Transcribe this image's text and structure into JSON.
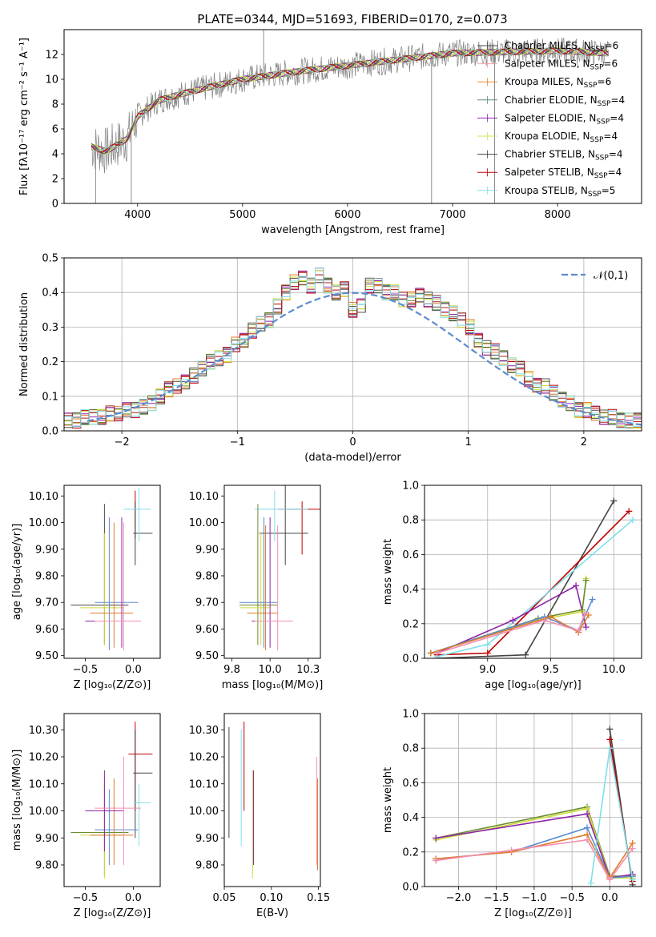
{
  "figure": {
    "title": "PLATE=0344, MJD=51693, FIBERID=0170, z=0.073"
  },
  "model_colors": [
    "#4d4d4d",
    "#c00000",
    "#e07b2c",
    "#6b8e2f",
    "#8e24aa",
    "#cddc39",
    "#555555",
    "#b22222",
    "#80deea"
  ],
  "chart_data": [
    {
      "id": "spectrum",
      "type": "line",
      "xlabel": "wavelength [Angstrom, rest frame]",
      "ylabel": "Flux [fλ10⁻¹⁷ erg cm⁻² s⁻¹ A⁻¹]",
      "xlim": [
        3300,
        8800
      ],
      "ylim": [
        0,
        14
      ],
      "xticks": [
        4000,
        5000,
        6000,
        7000,
        8000
      ],
      "yticks": [
        0,
        2,
        4,
        6,
        8,
        10,
        12
      ],
      "data_color": "#808080",
      "legend_placement": "upper right",
      "legend": [
        "Chabrier MILES, N_SSP=6",
        "Salpeter MILES, N_SSP=6",
        "Kroupa MILES, N_SSP=6",
        "Chabrier ELODIE, N_SSP=4",
        "Salpeter ELODIE, N_SSP=4",
        "Kroupa ELODIE, N_SSP=4",
        "Chabrier STELIB, N_SSP=4",
        "Salpeter STELIB, N_SSP=4",
        "Kroupa STELIB, N_SSP=5"
      ],
      "legend_colors": [
        "#4d4d4d",
        "#f4a0a0",
        "#e08a2c",
        "#5f8a7a",
        "#8e24aa",
        "#d4e157",
        "#444444",
        "#c00000",
        "#80deea"
      ],
      "continuum": {
        "x": [
          3550,
          3700,
          3900,
          4000,
          4200,
          4500,
          5000,
          5500,
          6000,
          6500,
          7000,
          7500,
          8000,
          8500
        ],
        "y": [
          4.6,
          4.2,
          5.2,
          7.0,
          8.3,
          9.0,
          10.0,
          10.6,
          11.1,
          11.6,
          12.1,
          12.2,
          12.3,
          12.1
        ]
      },
      "spikes": [
        {
          "x": 5200,
          "y": 14
        },
        {
          "x": 6800,
          "y": 0
        },
        {
          "x": 7400,
          "y": 0
        },
        {
          "x": 3940,
          "y": 0
        },
        {
          "x": 3600,
          "y": 0
        }
      ]
    },
    {
      "id": "residual_hist",
      "type": "step",
      "xlabel": "(data-model)/error",
      "ylabel": "Normed distribution",
      "xlim": [
        -2.5,
        2.5
      ],
      "ylim": [
        0,
        0.5
      ],
      "xticks": [
        -2,
        -1,
        0,
        1,
        2
      ],
      "yticks": [
        0.0,
        0.1,
        0.2,
        0.3,
        0.4,
        0.5
      ],
      "grid": true,
      "legend_placement": "upper right",
      "gaussian": {
        "name": "𝒩(0,1)",
        "color": "#5b8bd0"
      },
      "bin_edges_start": -2.5,
      "bin_width": 0.1,
      "envelope": [
        0.03,
        0.03,
        0.04,
        0.04,
        0.04,
        0.05,
        0.05,
        0.06,
        0.06,
        0.07,
        0.08,
        0.1,
        0.12,
        0.13,
        0.14,
        0.16,
        0.18,
        0.2,
        0.21,
        0.22,
        0.25,
        0.26,
        0.29,
        0.31,
        0.32,
        0.36,
        0.4,
        0.43,
        0.44,
        0.42,
        0.45,
        0.42,
        0.4,
        0.41,
        0.35,
        0.36,
        0.42,
        0.42,
        0.4,
        0.4,
        0.38,
        0.38,
        0.39,
        0.38,
        0.37,
        0.35,
        0.34,
        0.32,
        0.3,
        0.26,
        0.24,
        0.23,
        0.21,
        0.19,
        0.18,
        0.15,
        0.13,
        0.13,
        0.11,
        0.09,
        0.08,
        0.06,
        0.06,
        0.05,
        0.04,
        0.04,
        0.03,
        0.03,
        0.03
      ]
    },
    {
      "id": "age_vs_Z",
      "type": "errorbar",
      "xlabel": "Z [log₁₀(Z/Z⊙)]",
      "ylabel": "age  [log₁₀(age/yr)]",
      "xlim": [
        -0.72,
        0.28
      ],
      "ylim": [
        9.49,
        10.14
      ],
      "xticks": [
        -0.5,
        0.0
      ],
      "xticklabels": [
        "−0.5",
        "0.0"
      ],
      "yticks": [
        9.5,
        9.6,
        9.7,
        9.8,
        9.9,
        10.0,
        10.1
      ],
      "points": [
        {
          "x": 0.02,
          "y": 10.05,
          "xe": [
            0.0,
            0.02
          ],
          "ye": [
            9.94,
            10.12
          ],
          "c": "#c00000"
        },
        {
          "x": 0.02,
          "y": 9.96,
          "xe": [
            0.0,
            0.2
          ],
          "ye": [
            9.84,
            10.08
          ],
          "c": "#444444"
        },
        {
          "x": 0.06,
          "y": 10.05,
          "xe": [
            -0.1,
            0.18
          ],
          "ye": [
            9.93,
            10.13
          ],
          "c": "#80deea"
        },
        {
          "x": -0.3,
          "y": 9.69,
          "xe": [
            -0.65,
            -0.05
          ],
          "ye": [
            9.54,
            10.07
          ],
          "c": "#4d4d4d"
        },
        {
          "x": -0.3,
          "y": 9.68,
          "xe": [
            -0.55,
            -0.1
          ],
          "ye": [
            9.54,
            9.96
          ],
          "c": "#cddc39"
        },
        {
          "x": -0.25,
          "y": 9.7,
          "xe": [
            -0.4,
            0.05
          ],
          "ye": [
            9.52,
            10.02
          ],
          "c": "#5b8bd0"
        },
        {
          "x": -0.2,
          "y": 9.66,
          "xe": [
            -0.45,
            0.0
          ],
          "ye": [
            9.53,
            10.0
          ],
          "c": "#e07b2c"
        },
        {
          "x": -0.12,
          "y": 9.63,
          "xe": [
            -0.5,
            0.05
          ],
          "ye": [
            9.53,
            10.02
          ],
          "c": "#8e24aa"
        },
        {
          "x": -0.1,
          "y": 9.63,
          "xe": [
            -0.4,
            0.08
          ],
          "ye": [
            9.52,
            10.0
          ],
          "c": "#f48fb1"
        }
      ]
    },
    {
      "id": "age_vs_mass",
      "type": "errorbar",
      "xlabel": "mass [log₁₀(M/M⊙)]",
      "ylabel": "",
      "xlim": [
        9.7,
        10.33
      ],
      "ylim": [
        9.49,
        10.14
      ],
      "xticks": [
        9.75,
        10.0,
        10.25
      ],
      "yticks": [
        9.5,
        9.6,
        9.7,
        9.8,
        9.9,
        10.0,
        10.1
      ],
      "points": [
        {
          "x": 10.21,
          "y": 10.05,
          "xe": [
            10.05,
            10.33
          ],
          "ye": [
            9.88,
            10.08
          ],
          "c": "#c00000"
        },
        {
          "x": 10.1,
          "y": 9.96,
          "xe": [
            9.93,
            10.25
          ],
          "ye": [
            9.84,
            10.14
          ],
          "c": "#444444"
        },
        {
          "x": 10.03,
          "y": 10.05,
          "xe": [
            9.9,
            10.25
          ],
          "ye": [
            9.93,
            10.12
          ],
          "c": "#80deea"
        },
        {
          "x": 9.92,
          "y": 9.69,
          "xe": [
            9.8,
            10.05
          ],
          "ye": [
            9.54,
            10.07
          ],
          "c": "#6b8e2f"
        },
        {
          "x": 9.94,
          "y": 9.68,
          "xe": [
            9.8,
            10.0
          ],
          "ye": [
            9.54,
            9.96
          ],
          "c": "#cddc39"
        },
        {
          "x": 9.96,
          "y": 9.7,
          "xe": [
            9.8,
            10.05
          ],
          "ye": [
            9.53,
            10.02
          ],
          "c": "#5b8bd0"
        },
        {
          "x": 9.97,
          "y": 9.66,
          "xe": [
            9.85,
            10.05
          ],
          "ye": [
            9.52,
            9.99
          ],
          "c": "#e07b2c"
        },
        {
          "x": 10.0,
          "y": 9.63,
          "xe": [
            9.88,
            10.1
          ],
          "ye": [
            9.53,
            10.02
          ],
          "c": "#8e24aa"
        },
        {
          "x": 10.05,
          "y": 9.63,
          "xe": [
            9.9,
            10.15
          ],
          "ye": [
            9.52,
            9.99
          ],
          "c": "#f48fb1"
        }
      ]
    },
    {
      "id": "weight_vs_age",
      "type": "line",
      "xlabel": "age  [log₁₀(age/yr)]",
      "ylabel": "mass weight",
      "xlim": [
        8.5,
        10.22
      ],
      "ylim": [
        0.0,
        1.0
      ],
      "xticks": [
        9.0,
        9.5,
        10.0
      ],
      "yticks": [
        0.0,
        0.2,
        0.4,
        0.6,
        0.8,
        1.0
      ],
      "grid": true,
      "series": [
        {
          "c": "#444444",
          "x": [
            8.6,
            9.3,
            10.0
          ],
          "y": [
            0.0,
            0.02,
            0.91
          ]
        },
        {
          "c": "#c00000",
          "x": [
            8.6,
            9.0,
            10.12
          ],
          "y": [
            0.02,
            0.03,
            0.85
          ]
        },
        {
          "c": "#80deea",
          "x": [
            8.6,
            9.0,
            10.15
          ],
          "y": [
            0.01,
            0.08,
            0.8
          ]
        },
        {
          "c": "#8e24aa",
          "x": [
            8.6,
            9.2,
            9.7,
            9.78
          ],
          "y": [
            0.03,
            0.22,
            0.42,
            0.18
          ]
        },
        {
          "c": "#cddc39",
          "x": [
            8.55,
            9.4,
            9.75,
            9.78
          ],
          "y": [
            0.03,
            0.22,
            0.27,
            0.46
          ]
        },
        {
          "c": "#6b8e2f",
          "x": [
            8.55,
            9.4,
            9.75,
            9.78
          ],
          "y": [
            0.03,
            0.23,
            0.28,
            0.45
          ]
        },
        {
          "c": "#5b8bd0",
          "x": [
            8.55,
            9.45,
            9.72,
            9.83
          ],
          "y": [
            0.03,
            0.24,
            0.16,
            0.34
          ]
        },
        {
          "c": "#e07b2c",
          "x": [
            8.55,
            9.5,
            9.72,
            9.8
          ],
          "y": [
            0.03,
            0.24,
            0.15,
            0.25
          ]
        },
        {
          "c": "#f48fb1",
          "x": [
            8.6,
            9.45,
            9.72,
            9.77
          ],
          "y": [
            0.03,
            0.22,
            0.16,
            0.26
          ]
        }
      ]
    },
    {
      "id": "mass_vs_Z",
      "type": "errorbar",
      "xlabel": "Z [log₁₀(Z/Z⊙)]",
      "ylabel": "mass [log₁₀(M/M⊙)]",
      "xlim": [
        -0.72,
        0.28
      ],
      "ylim": [
        9.72,
        10.36
      ],
      "xticks": [
        -0.5,
        0.0
      ],
      "xticklabels": [
        "−0.5",
        "0.0"
      ],
      "yticks": [
        9.8,
        9.9,
        10.0,
        10.1,
        10.2,
        10.3
      ],
      "points": [
        {
          "x": 0.02,
          "y": 10.21,
          "xe": [
            -0.05,
            0.2
          ],
          "ye": [
            10.0,
            10.33
          ],
          "c": "#c00000"
        },
        {
          "x": 0.02,
          "y": 10.14,
          "xe": [
            0.0,
            0.2
          ],
          "ye": [
            9.9,
            10.3
          ],
          "c": "#444444"
        },
        {
          "x": 0.06,
          "y": 10.03,
          "xe": [
            0.0,
            0.18
          ],
          "ye": [
            9.87,
            10.1
          ],
          "c": "#80deea"
        },
        {
          "x": -0.3,
          "y": 9.92,
          "xe": [
            -0.65,
            -0.05
          ],
          "ye": [
            9.76,
            10.1
          ],
          "c": "#6b8e2f"
        },
        {
          "x": -0.3,
          "y": 9.91,
          "xe": [
            -0.55,
            -0.1
          ],
          "ye": [
            9.75,
            10.12
          ],
          "c": "#cddc39"
        },
        {
          "x": -0.25,
          "y": 9.93,
          "xe": [
            -0.4,
            0.05
          ],
          "ye": [
            9.8,
            10.08
          ],
          "c": "#5b8bd0"
        },
        {
          "x": -0.2,
          "y": 9.91,
          "xe": [
            -0.45,
            0.0
          ],
          "ye": [
            9.8,
            10.12
          ],
          "c": "#e07b2c"
        },
        {
          "x": -0.3,
          "y": 10.0,
          "xe": [
            -0.5,
            -0.1
          ],
          "ye": [
            9.85,
            10.15
          ],
          "c": "#8e24aa"
        },
        {
          "x": -0.1,
          "y": 10.01,
          "xe": [
            -0.4,
            0.08
          ],
          "ye": [
            9.8,
            10.2
          ],
          "c": "#f48fb1"
        }
      ]
    },
    {
      "id": "mass_vs_ebv",
      "type": "errorbar",
      "xlabel": "E(B-V)",
      "ylabel": "",
      "xlim": [
        0.05,
        0.152
      ],
      "ylim": [
        9.72,
        10.36
      ],
      "xticks": [
        0.05,
        0.1,
        0.15
      ],
      "xticklabels": [
        "0.05",
        "0.10",
        "0.15"
      ],
      "yticks": [
        9.8,
        9.9,
        10.0,
        10.1,
        10.2,
        10.3
      ],
      "points": [
        {
          "x": 0.055,
          "y": 10.1,
          "xe": [
            0.055,
            0.055
          ],
          "ye": [
            9.9,
            10.31
          ],
          "c": "#444444"
        },
        {
          "x": 0.068,
          "y": 10.1,
          "xe": [
            0.068,
            0.068
          ],
          "ye": [
            9.87,
            10.3
          ],
          "c": "#80deea"
        },
        {
          "x": 0.071,
          "y": 10.2,
          "xe": [
            0.071,
            0.071
          ],
          "ye": [
            10.0,
            10.33
          ],
          "c": "#c00000"
        },
        {
          "x": 0.08,
          "y": 9.95,
          "xe": [
            0.08,
            0.08
          ],
          "ye": [
            9.75,
            10.15
          ],
          "c": "#cddc39"
        },
        {
          "x": 0.081,
          "y": 10.0,
          "xe": [
            0.081,
            0.081
          ],
          "ye": [
            9.8,
            10.15
          ],
          "c": "#8e24aa"
        },
        {
          "x": 0.148,
          "y": 10.0,
          "xe": [
            0.148,
            0.148
          ],
          "ye": [
            9.8,
            10.2
          ],
          "c": "#f48fb1"
        },
        {
          "x": 0.149,
          "y": 9.95,
          "xe": [
            0.149,
            0.149
          ],
          "ye": [
            9.78,
            10.12
          ],
          "c": "#e07b2c"
        }
      ]
    },
    {
      "id": "weight_vs_Z",
      "type": "line",
      "xlabel": "Z [log₁₀(Z/Z⊙)]",
      "ylabel": "mass weight",
      "xlim": [
        -2.45,
        0.42
      ],
      "ylim": [
        0.0,
        1.0
      ],
      "xticks": [
        -2.0,
        -1.5,
        -1.0,
        -0.5,
        0.0
      ],
      "xticklabels": [
        "−2.0",
        "−1.5",
        "−1.0",
        "−0.5",
        "0.0"
      ],
      "yticks": [
        0.0,
        0.2,
        0.4,
        0.6,
        0.8,
        1.0
      ],
      "grid": true,
      "series": [
        {
          "c": "#6b8e2f",
          "x": [
            -2.3,
            -0.3,
            0.0,
            0.3
          ],
          "y": [
            0.28,
            0.46,
            0.06,
            0.06
          ]
        },
        {
          "c": "#cddc39",
          "x": [
            -2.3,
            -0.3,
            0.0,
            0.3
          ],
          "y": [
            0.27,
            0.45,
            0.05,
            0.05
          ]
        },
        {
          "c": "#8e24aa",
          "x": [
            -2.3,
            -0.3,
            0.0,
            0.3
          ],
          "y": [
            0.28,
            0.42,
            0.05,
            0.07
          ]
        },
        {
          "c": "#5b8bd0",
          "x": [
            -2.3,
            -1.3,
            -0.3,
            0.0,
            0.3
          ],
          "y": [
            0.16,
            0.2,
            0.34,
            0.05,
            0.06
          ]
        },
        {
          "c": "#e07b2c",
          "x": [
            -2.3,
            -1.3,
            -0.3,
            0.0,
            0.3
          ],
          "y": [
            0.16,
            0.2,
            0.3,
            0.05,
            0.25
          ]
        },
        {
          "c": "#f48fb1",
          "x": [
            -2.3,
            -1.3,
            -0.3,
            0.0,
            0.3
          ],
          "y": [
            0.15,
            0.21,
            0.27,
            0.04,
            0.22
          ]
        },
        {
          "c": "#444444",
          "x": [
            0.0,
            0.3
          ],
          "y": [
            0.91,
            0.01
          ]
        },
        {
          "c": "#c00000",
          "x": [
            0.0,
            0.3
          ],
          "y": [
            0.85,
            0.03
          ]
        },
        {
          "c": "#80deea",
          "x": [
            -0.25,
            0.0,
            0.3
          ],
          "y": [
            0.02,
            0.8,
            0.04
          ]
        }
      ]
    }
  ]
}
